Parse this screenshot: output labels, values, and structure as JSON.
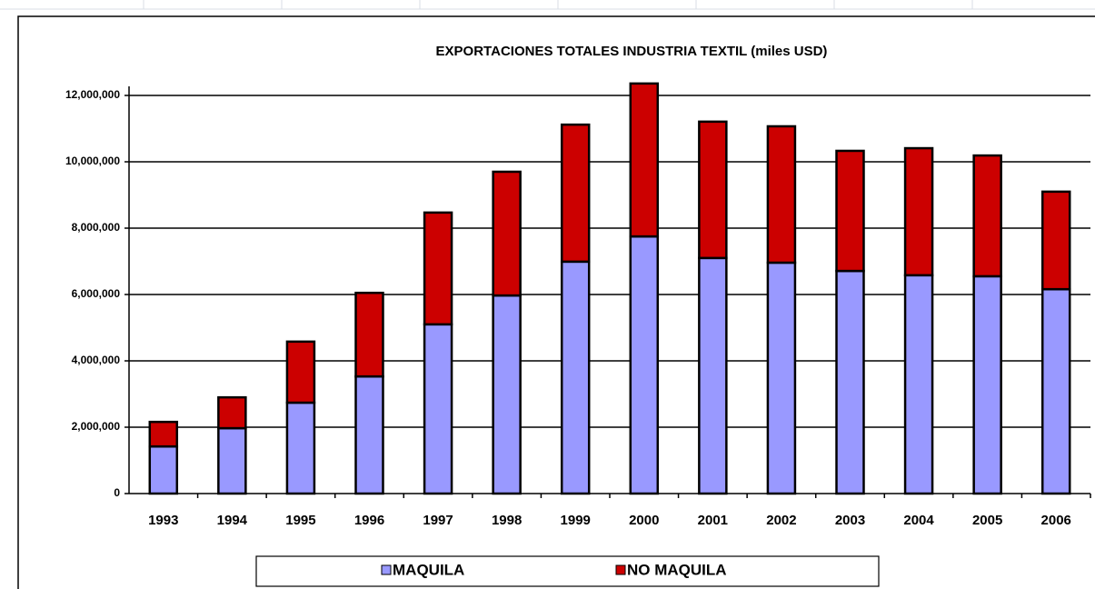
{
  "chart_data": {
    "type": "stacked_bar",
    "title": "EXPORTACIONES TOTALES INDUSTRIA TEXTIL  (miles USD)",
    "categories": [
      "1993",
      "1994",
      "1995",
      "1996",
      "1997",
      "1998",
      "1999",
      "2000",
      "2001",
      "2002",
      "2003",
      "2004",
      "2005",
      "2006"
    ],
    "series": [
      {
        "name": "MAQUILA",
        "color": "#9999ff",
        "values": [
          1420000,
          1970000,
          2740000,
          3530000,
          5100000,
          5970000,
          6990000,
          7750000,
          7100000,
          6960000,
          6710000,
          6580000,
          6550000,
          6160000
        ]
      },
      {
        "name": "NO MAQUILA",
        "color": "#cc0000",
        "values": [
          740000,
          930000,
          1840000,
          2520000,
          3370000,
          3730000,
          4130000,
          4610000,
          4110000,
          4110000,
          3620000,
          3830000,
          3640000,
          2940000
        ]
      }
    ],
    "ylim": [
      0,
      12000000
    ],
    "yticks": [
      0,
      {
        "value": 2000000,
        "label": "2,000,000"
      },
      {
        "value": 4000000,
        "label": "4,000,000"
      },
      {
        "value": 6000000,
        "label": "6,000,000"
      },
      {
        "value": 8000000,
        "label": "8,000,000"
      },
      {
        "value": 10000000,
        "label": "10,000,000"
      },
      {
        "value": 12000000,
        "label": "12,000,000"
      }
    ],
    "grid": true,
    "legend": "bottom"
  }
}
